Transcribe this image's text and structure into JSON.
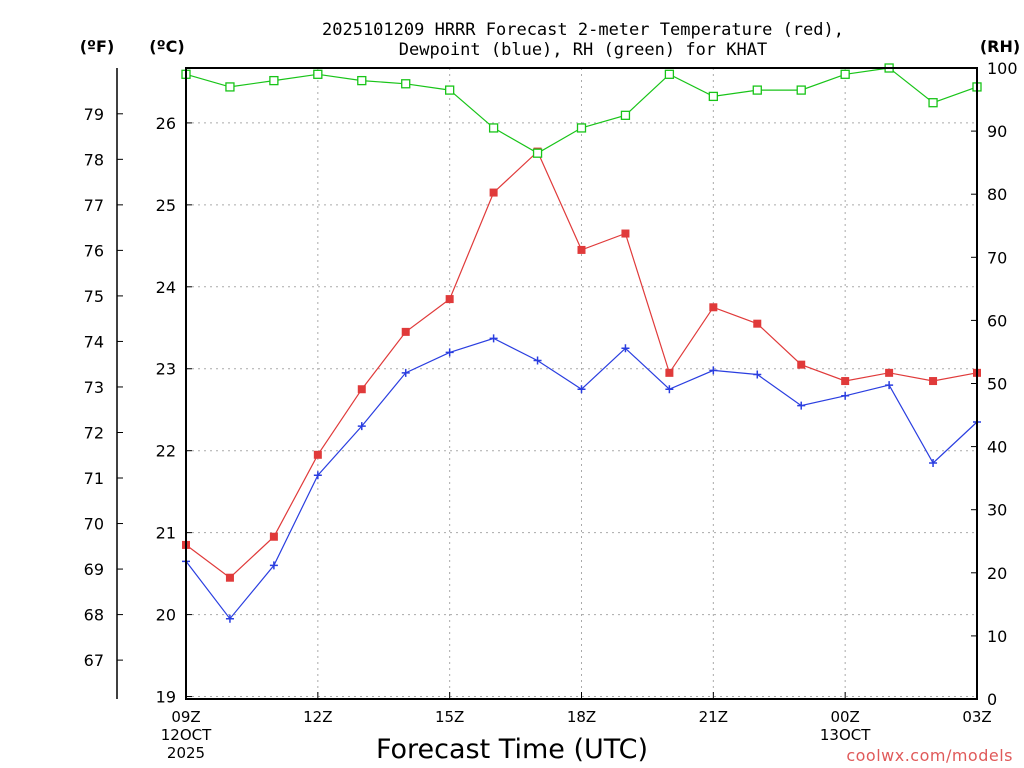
{
  "chart_data": {
    "type": "line",
    "title_line1": "2025101209 HRRR Forecast 2-meter Temperature (red),",
    "title_line2": "Dewpoint (blue), RH (green) for KHAT",
    "xlabel": "Forecast Time (UTC)",
    "credit": "coolwx.com/models",
    "units": {
      "fahrenheit": "(ºF)",
      "celsius": "(ºC)",
      "rh": "(RH)"
    },
    "hours": [
      9,
      10,
      11,
      12,
      13,
      14,
      15,
      16,
      17,
      18,
      19,
      20,
      21,
      22,
      23,
      24,
      25,
      26,
      27
    ],
    "x_ticks": [
      {
        "hour": 9,
        "label": "09Z",
        "sub1": "12OCT",
        "sub2": "2025"
      },
      {
        "hour": 12,
        "label": "12Z",
        "sub1": "",
        "sub2": ""
      },
      {
        "hour": 15,
        "label": "15Z",
        "sub1": "",
        "sub2": ""
      },
      {
        "hour": 18,
        "label": "18Z",
        "sub1": "",
        "sub2": ""
      },
      {
        "hour": 21,
        "label": "21Z",
        "sub1": "",
        "sub2": ""
      },
      {
        "hour": 24,
        "label": "00Z",
        "sub1": "13OCT",
        "sub2": ""
      },
      {
        "hour": 27,
        "label": "03Z",
        "sub1": "",
        "sub2": ""
      }
    ],
    "celsius_range": [
      18.97,
      26.67
    ],
    "celsius_ticks": [
      19,
      20,
      21,
      22,
      23,
      24,
      25,
      26
    ],
    "fahrenheit_ticks": [
      67,
      68,
      69,
      70,
      71,
      72,
      73,
      74,
      75,
      76,
      77,
      78,
      79
    ],
    "rh_range": [
      0,
      100
    ],
    "rh_ticks": [
      0,
      10,
      20,
      30,
      40,
      50,
      60,
      70,
      80,
      90,
      100
    ],
    "series": [
      {
        "name": "Temperature",
        "unit": "C",
        "color": "#e03a3a",
        "marker": "filled-square",
        "values": [
          20.85,
          20.45,
          20.95,
          21.95,
          22.75,
          23.45,
          23.85,
          25.15,
          25.65,
          24.45,
          24.65,
          22.95,
          23.75,
          23.55,
          23.05,
          22.85,
          22.95,
          22.85,
          22.95
        ]
      },
      {
        "name": "Dewpoint",
        "unit": "C",
        "color": "#2a3ee0",
        "marker": "plus",
        "values": [
          20.65,
          19.95,
          20.6,
          21.7,
          22.3,
          22.95,
          23.2,
          23.37,
          23.1,
          22.75,
          23.25,
          22.75,
          22.98,
          22.93,
          22.55,
          22.67,
          22.8,
          21.85,
          22.35
        ]
      },
      {
        "name": "RH",
        "unit": "%",
        "color": "#18c418",
        "marker": "open-square",
        "values": [
          99,
          97,
          98,
          99,
          98,
          97.5,
          96.5,
          90.5,
          86.5,
          90.5,
          92.5,
          99,
          95.5,
          96.5,
          96.5,
          99,
          100,
          94.5,
          97
        ]
      }
    ]
  }
}
